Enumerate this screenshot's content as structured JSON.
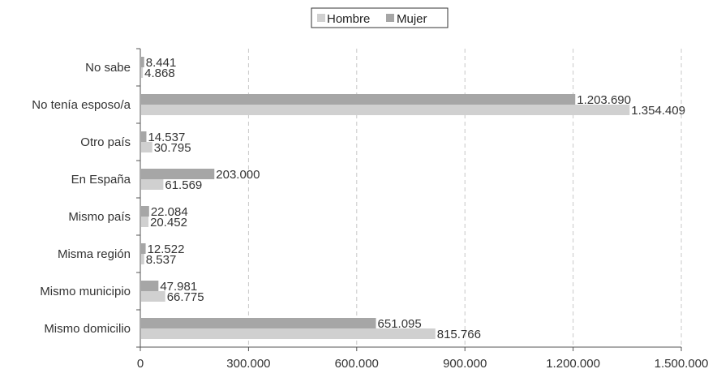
{
  "chart_data": {
    "type": "bar",
    "orientation": "horizontal",
    "categories": [
      "No sabe",
      "No tenía esposo/a",
      "Otro país",
      "En España",
      "Mismo país",
      "Misma región",
      "Mismo municipio",
      "Mismo domicilio"
    ],
    "series": [
      {
        "name": "Mujer",
        "color": "#a6a6a6",
        "values": [
          8441,
          1203690,
          14537,
          203000,
          22084,
          12522,
          47981,
          651095
        ],
        "labels": [
          "8.441",
          "1.203.690",
          "14.537",
          "203.000",
          "22.084",
          "12.522",
          "47.981",
          "651.095"
        ]
      },
      {
        "name": "Hombre",
        "color": "#d0d0d0",
        "values": [
          4868,
          1354409,
          30795,
          61569,
          20452,
          8537,
          66775,
          815766
        ],
        "labels": [
          "4.868",
          "1.354.409",
          "30.795",
          "61.569",
          "20.452",
          "8.537",
          "66.775",
          "815.766"
        ]
      }
    ],
    "xlim": [
      0,
      1500000
    ],
    "ticks": [
      0,
      300000,
      600000,
      900000,
      1200000,
      1500000
    ],
    "tick_labels": [
      "0",
      "300.000",
      "600.000",
      "900.000",
      "1.200.000",
      "1.500.000"
    ],
    "grid": "vertical-dashed",
    "legend": {
      "position": "top-center",
      "entries": [
        "Hombre",
        "Mujer"
      ]
    }
  }
}
